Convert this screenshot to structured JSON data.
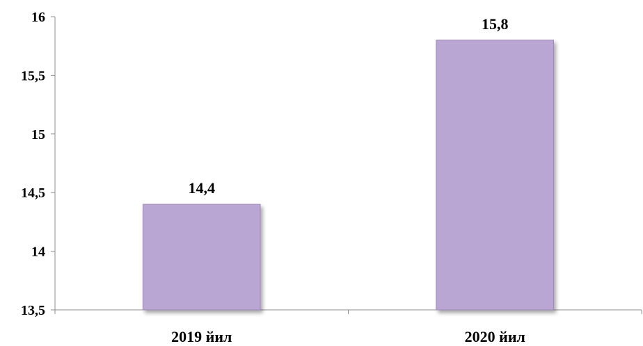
{
  "chart_data": {
    "type": "bar",
    "categories": [
      "2019 йил",
      "2020 йил"
    ],
    "values": [
      14.4,
      15.8
    ],
    "data_labels": [
      "14,4",
      "15,8"
    ],
    "ylim": [
      13.5,
      16
    ],
    "y_ticks": [
      "13,5",
      "14",
      "14,5",
      "15",
      "15,5",
      "16"
    ],
    "y_tick_values": [
      13.5,
      14,
      14.5,
      15,
      15.5,
      16
    ],
    "grid": false,
    "legend": "none",
    "bar_color": "#b9a6d3",
    "bar_edge_color": "#9c86bb"
  }
}
